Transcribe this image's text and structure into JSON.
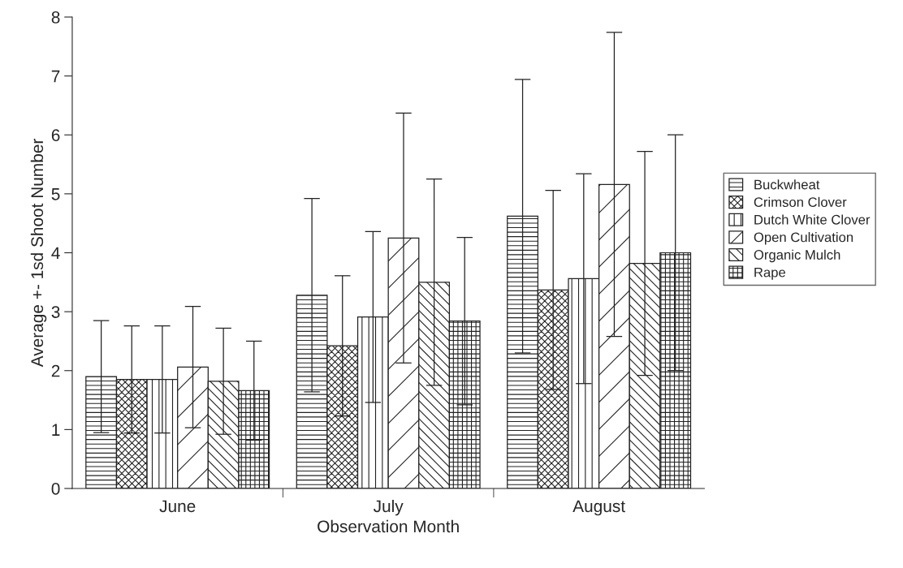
{
  "chart_data": {
    "type": "bar",
    "xlabel": "Observation Month",
    "ylabel": "Average +- 1sd Shoot Number",
    "categories": [
      "June",
      "July",
      "August"
    ],
    "series": [
      {
        "name": "Buckwheat",
        "color": "#222222",
        "values": [
          1.9,
          3.28,
          4.62
        ],
        "errors": [
          0.95,
          1.64,
          2.32
        ]
      },
      {
        "name": "Crimson Clover",
        "color": "#222222",
        "values": [
          1.85,
          2.42,
          3.37
        ],
        "errors": [
          0.91,
          1.19,
          1.69
        ]
      },
      {
        "name": "Dutch White Clover",
        "color": "#222222",
        "values": [
          1.85,
          2.91,
          3.56
        ],
        "errors": [
          0.91,
          1.45,
          1.78
        ]
      },
      {
        "name": "Open Cultivation",
        "color": "#222222",
        "values": [
          2.06,
          4.25,
          5.16
        ],
        "errors": [
          1.03,
          2.12,
          2.58
        ]
      },
      {
        "name": "Organic Mulch",
        "color": "#222222",
        "values": [
          1.82,
          3.5,
          3.82
        ],
        "errors": [
          0.9,
          1.75,
          1.9
        ]
      },
      {
        "name": "Rape",
        "color": "#222222",
        "values": [
          1.66,
          2.84,
          4.0
        ],
        "errors": [
          0.84,
          1.42,
          2.0
        ]
      }
    ],
    "ylim": [
      0,
      8
    ],
    "yticks": [
      0,
      1,
      2,
      3,
      4,
      5,
      6,
      7,
      8
    ],
    "grid": false,
    "legend": "right"
  }
}
